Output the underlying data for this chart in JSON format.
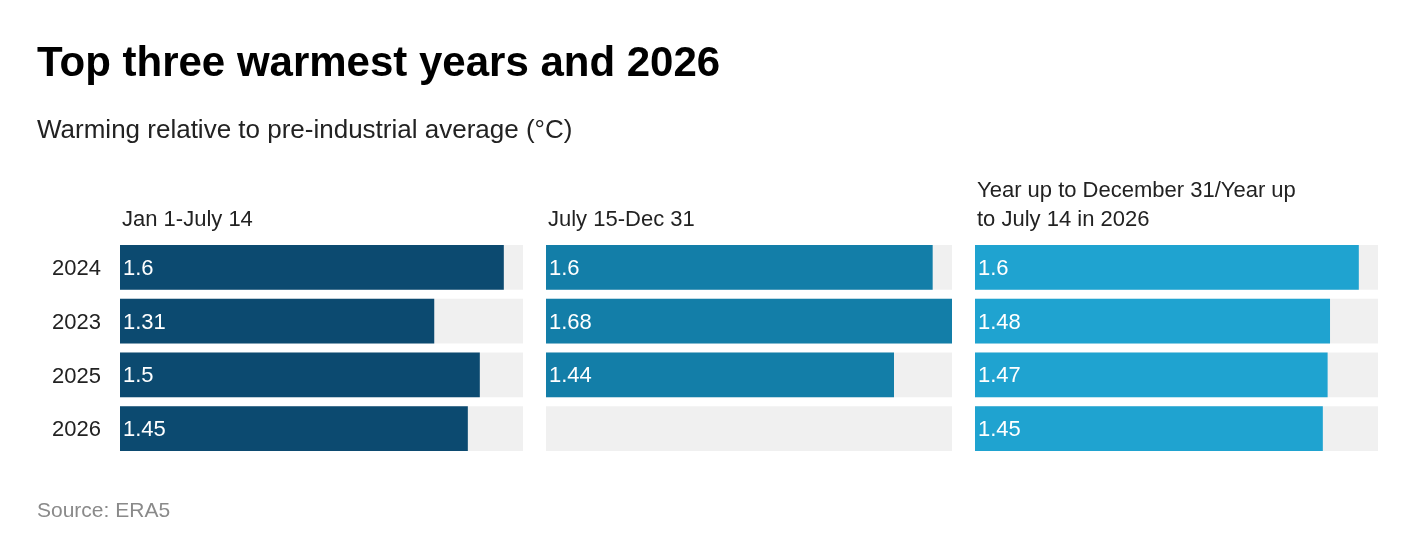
{
  "chart_data": [
    {
      "type": "bar",
      "orientation": "horizontal",
      "title": "Top three warmest years and 2026",
      "subtitle": "Warming relative to pre-industrial average (°C)",
      "categories": [
        "2024",
        "2023",
        "2025",
        "2026"
      ],
      "xlim": [
        0,
        1.68
      ],
      "tick_labels": "y",
      "data_labels": true,
      "annotations": [
        "Source: ERA5"
      ],
      "series": [
        {
          "name": "Jan 1-July 14",
          "color": "#0c4a70",
          "values": [
            1.6,
            1.31,
            1.5,
            1.45
          ]
        }
      ]
    },
    {
      "type": "bar",
      "orientation": "horizontal",
      "categories": [
        "2024",
        "2023",
        "2025",
        "2026"
      ],
      "xlim": [
        0,
        1.68
      ],
      "tick_labels": false,
      "data_labels": true,
      "series": [
        {
          "name": "July 15-Dec 31",
          "color": "#137ea8",
          "values": [
            1.6,
            1.68,
            1.44,
            null
          ]
        }
      ]
    },
    {
      "type": "bar",
      "orientation": "horizontal",
      "categories": [
        "2024",
        "2023",
        "2025",
        "2026"
      ],
      "xlim": [
        0,
        1.68
      ],
      "tick_labels": false,
      "data_labels": true,
      "series": [
        {
          "name": "Year up to December 31/Year up to July 14 in 2026",
          "color": "#1fa3d0",
          "values": [
            1.6,
            1.48,
            1.47,
            1.45
          ]
        }
      ]
    }
  ]
}
